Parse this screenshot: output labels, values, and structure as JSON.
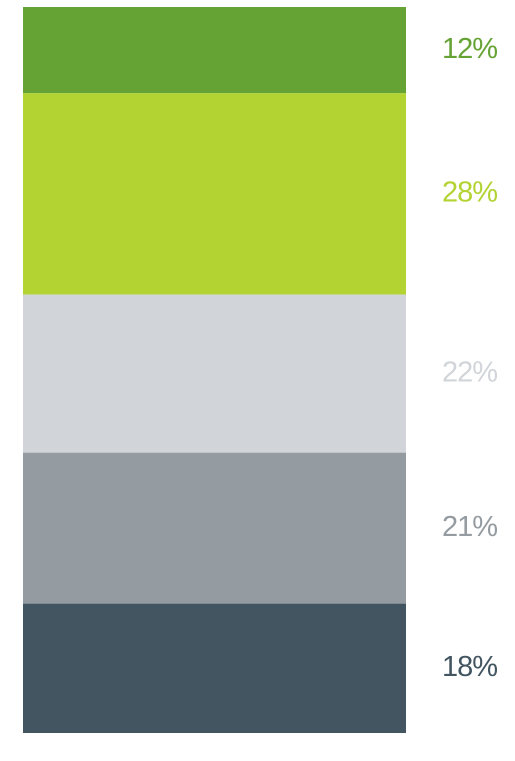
{
  "chart_data": {
    "type": "stacked-bar",
    "values": [
      12,
      28,
      22,
      21,
      18
    ],
    "value_labels": [
      "12%",
      "28%",
      "22%",
      "21%",
      "18%"
    ],
    "colors": [
      "#66a335",
      "#b3d332",
      "#d1d5d9",
      "#959ca1",
      "#435560"
    ]
  }
}
